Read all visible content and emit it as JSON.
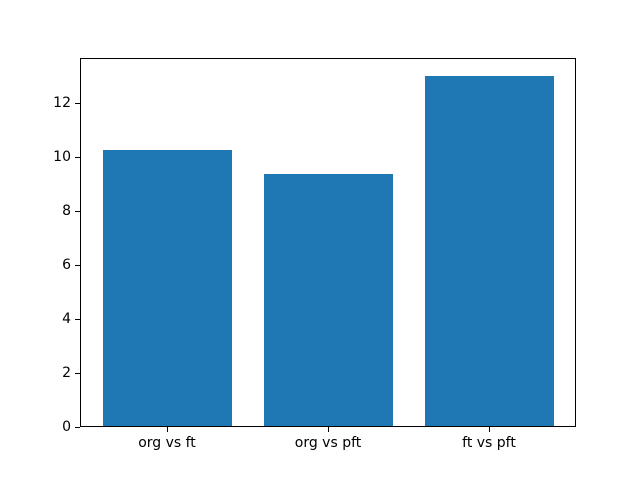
{
  "chart_data": {
    "type": "bar",
    "title": "",
    "xlabel": "",
    "ylabel": "",
    "categories": [
      "org vs ft",
      "org vs pft",
      "ft vs pft"
    ],
    "values": [
      10.25,
      9.35,
      13.0
    ],
    "yticks": [
      0,
      2,
      4,
      6,
      8,
      10,
      12
    ],
    "ytick_labels": [
      "0",
      "2",
      "4",
      "6",
      "8",
      "10",
      "12"
    ],
    "ylim": [
      0,
      13.65
    ],
    "bar_color": "#1f77b4",
    "background_color": "#ffffff",
    "spine_color": "#000000",
    "text_color": "#000000",
    "grid": false,
    "legend": null
  }
}
